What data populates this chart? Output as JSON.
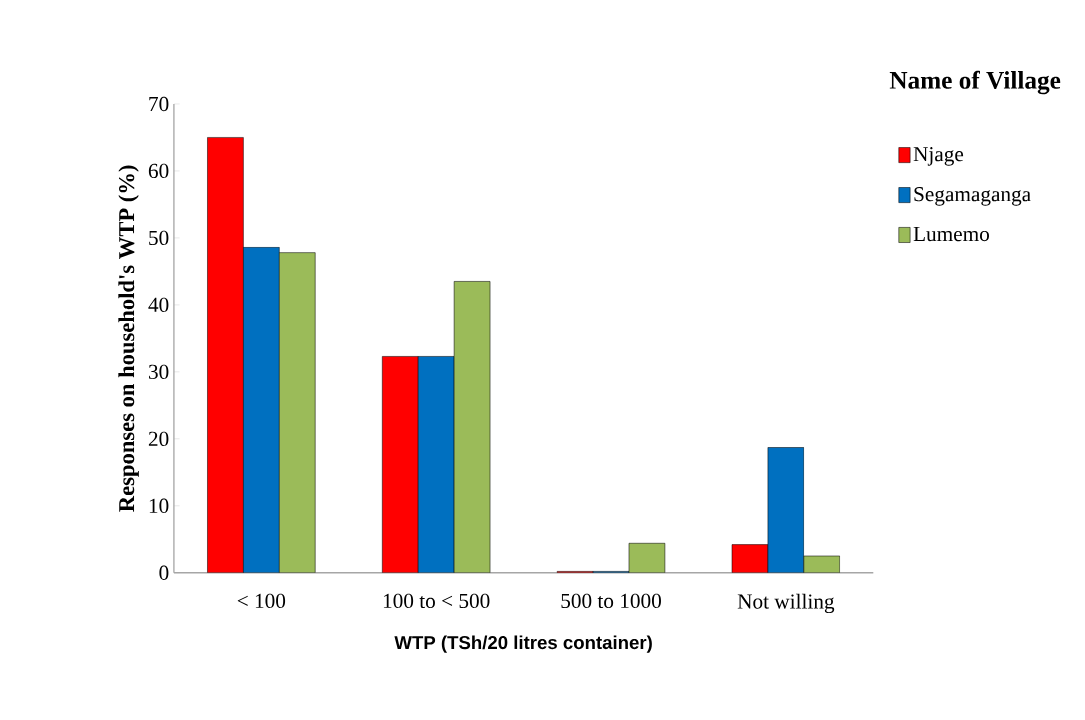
{
  "chart_data": {
    "type": "bar",
    "xlabel": "WTP (TSh/20 litres container)",
    "ylabel": "Responses on household's WTP (%)",
    "legend_title": "Name of Village",
    "categories": [
      "< 100",
      "100 to < 500",
      "500 to 1000",
      "Not willing"
    ],
    "series": [
      {
        "name": "Njage",
        "color": "#ff0000",
        "values": [
          65,
          32.3,
          0.2,
          4.2
        ]
      },
      {
        "name": "Segamaganga",
        "color": "#0070c0",
        "values": [
          48.6,
          32.3,
          0.2,
          18.7
        ]
      },
      {
        "name": "Lumemo",
        "color": "#9bbb59",
        "values": [
          47.8,
          43.5,
          4.4,
          2.5
        ]
      }
    ],
    "ylim": [
      0,
      70
    ],
    "yticks": [
      0,
      10,
      20,
      30,
      40,
      50,
      60,
      70
    ],
    "grid": false,
    "legend": "right"
  }
}
